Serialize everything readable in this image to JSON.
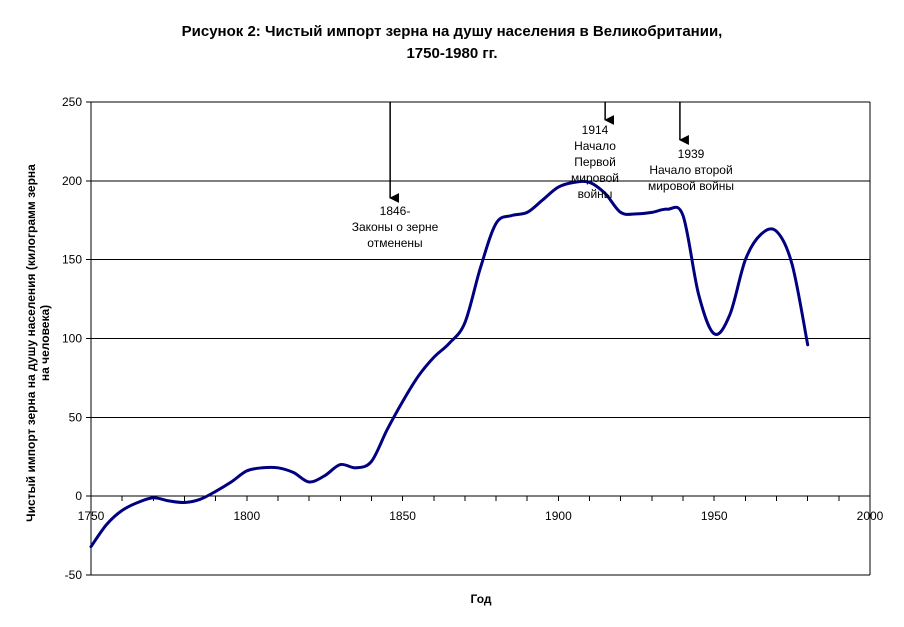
{
  "chart_data": {
    "type": "line",
    "title_lines": [
      "Рисунок 2: Чистый импорт зерна на душу населения в Великобритании,",
      "1750-1980 гг."
    ],
    "xlabel": "Год",
    "ylabel_lines": [
      "Чистый импорт зерна на душу населения (килограмм зерна",
      "на человека)"
    ],
    "xlim": [
      1750,
      2000
    ],
    "ylim": [
      -50,
      250
    ],
    "xticks": [
      "1750",
      "1800",
      "1850",
      "1900",
      "1950",
      "2000"
    ],
    "yticks": [
      "250",
      "200",
      "150",
      "100",
      "50",
      "0",
      "-50"
    ],
    "gridlines": "horizontal",
    "legend": "none",
    "line_color": "#000080",
    "series": [
      {
        "x": [
          1750,
          1755,
          1760,
          1765,
          1770,
          1775,
          1780,
          1785,
          1790,
          1795,
          1800,
          1805,
          1810,
          1815,
          1820,
          1825,
          1830,
          1835,
          1840,
          1845,
          1850,
          1855,
          1860,
          1865,
          1870,
          1875,
          1880,
          1885,
          1890,
          1895,
          1900,
          1905,
          1910,
          1915,
          1920,
          1925,
          1930,
          1935,
          1940,
          1945,
          1950,
          1955,
          1960,
          1965,
          1970,
          1975,
          1980
        ],
        "y": [
          -32,
          -18,
          -9,
          -4,
          -1,
          -3,
          -4,
          -2,
          3,
          9,
          16,
          18,
          18,
          15,
          9,
          13,
          20,
          18,
          22,
          42,
          60,
          76,
          88,
          97,
          110,
          145,
          173,
          178,
          180,
          188,
          196,
          199,
          199,
          192,
          180,
          179,
          180,
          182,
          178,
          128,
          103,
          115,
          150,
          166,
          168,
          147,
          96
        ]
      }
    ],
    "annotations": [
      {
        "x": 1846,
        "lines": [
          "1846-",
          "Законы о зерне",
          "отменены"
        ]
      },
      {
        "x": 1915,
        "lines": [
          "1914",
          "Начало",
          "Первой",
          "мировой",
          "войны"
        ]
      },
      {
        "x": 1939,
        "lines": [
          "1939",
          "Начало второй",
          "мировой войны"
        ]
      }
    ]
  }
}
